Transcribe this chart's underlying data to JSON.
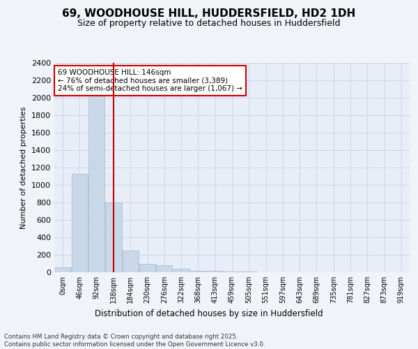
{
  "title_line1": "69, WOODHOUSE HILL, HUDDERSFIELD, HD2 1DH",
  "title_line2": "Size of property relative to detached houses in Huddersfield",
  "xlabel": "Distribution of detached houses by size in Huddersfield",
  "ylabel": "Number of detached properties",
  "footer": "Contains HM Land Registry data © Crown copyright and database right 2025.\nContains public sector information licensed under the Open Government Licence v3.0.",
  "bar_values": [
    60,
    1130,
    2050,
    800,
    250,
    100,
    80,
    40,
    20,
    15,
    10,
    5,
    3,
    2,
    1,
    1,
    0,
    0,
    0,
    0,
    0
  ],
  "categories": [
    "0sqm",
    "46sqm",
    "92sqm",
    "138sqm",
    "184sqm",
    "230sqm",
    "276sqm",
    "322sqm",
    "368sqm",
    "413sqm",
    "459sqm",
    "505sqm",
    "551sqm",
    "597sqm",
    "643sqm",
    "689sqm",
    "735sqm",
    "781sqm",
    "827sqm",
    "873sqm",
    "919sqm"
  ],
  "bar_color": "#c8d8e8",
  "bar_edgecolor": "#a0b8d0",
  "grid_color": "#d0d8e8",
  "background_color": "#e8eef8",
  "fig_background_color": "#f0f4f8",
  "vline_x": 3,
  "vline_color": "#cc0000",
  "annotation_text": "69 WOODHOUSE HILL: 146sqm\n← 76% of detached houses are smaller (3,389)\n24% of semi-detached houses are larger (1,067) →",
  "annotation_box_color": "#ffffff",
  "annotation_box_edgecolor": "#cc0000",
  "ylim": [
    0,
    2400
  ],
  "yticks": [
    0,
    200,
    400,
    600,
    800,
    1000,
    1200,
    1400,
    1600,
    1800,
    2000,
    2200,
    2400
  ]
}
